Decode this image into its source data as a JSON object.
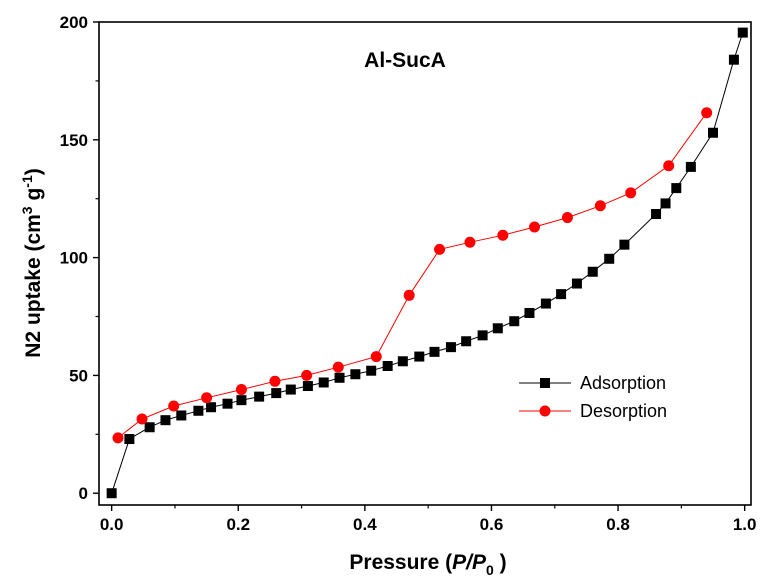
{
  "chart_data": {
    "type": "line",
    "annotation": "Al-SucA",
    "xlabel": {
      "main": "Pressure (",
      "italic": "P/P",
      "sub": "0",
      "end": " )"
    },
    "ylabel": {
      "main": "N2 uptake (cm",
      "sup1": "3",
      "mid": " g",
      "sup2": "-1",
      "end": ")"
    },
    "xlim": [
      -0.02,
      1.01
    ],
    "ylim": [
      -5,
      200
    ],
    "xticks": [
      0.0,
      0.2,
      0.4,
      0.6,
      0.8,
      1.0
    ],
    "xtick_labels": [
      "0.0",
      "0.2",
      "0.4",
      "0.6",
      "0.8",
      "1.0"
    ],
    "yticks": [
      0,
      50,
      100,
      150,
      200
    ],
    "ytick_labels": [
      "0",
      "50",
      "100",
      "150",
      "200"
    ],
    "grid": false,
    "legend_position": "center-right",
    "series": [
      {
        "name": "Adsorption",
        "marker": "square",
        "color": "#000000",
        "x": [
          0.0,
          0.028,
          0.06,
          0.085,
          0.11,
          0.137,
          0.157,
          0.183,
          0.205,
          0.233,
          0.26,
          0.283,
          0.31,
          0.335,
          0.36,
          0.385,
          0.41,
          0.436,
          0.46,
          0.486,
          0.51,
          0.536,
          0.56,
          0.586,
          0.61,
          0.636,
          0.66,
          0.686,
          0.71,
          0.735,
          0.76,
          0.786,
          0.81,
          0.86,
          0.875,
          0.892,
          0.915,
          0.95,
          0.983,
          0.997
        ],
        "y": [
          0.0,
          23.0,
          28.0,
          31.0,
          33.0,
          35.0,
          36.5,
          38.0,
          39.5,
          41.0,
          42.5,
          44.0,
          45.5,
          47.0,
          49.0,
          50.5,
          52.0,
          54.0,
          56.0,
          58.0,
          60.0,
          62.0,
          64.5,
          67.0,
          70.0,
          73.0,
          76.5,
          80.5,
          84.5,
          89.0,
          94.0,
          99.5,
          105.5,
          118.5,
          123.0,
          129.5,
          138.5,
          153.0,
          184.0,
          195.5
        ]
      },
      {
        "name": "Desorption",
        "marker": "circle",
        "color": "#ff0000",
        "x": [
          0.01,
          0.048,
          0.098,
          0.15,
          0.205,
          0.258,
          0.308,
          0.358,
          0.418,
          0.47,
          0.518,
          0.566,
          0.618,
          0.668,
          0.72,
          0.772,
          0.82,
          0.88,
          0.94
        ],
        "y": [
          23.5,
          31.5,
          37.0,
          40.5,
          44.0,
          47.5,
          50.0,
          53.5,
          58.0,
          84.0,
          103.5,
          106.5,
          109.5,
          113.0,
          117.0,
          122.0,
          127.5,
          139.0,
          161.5
        ]
      }
    ]
  }
}
